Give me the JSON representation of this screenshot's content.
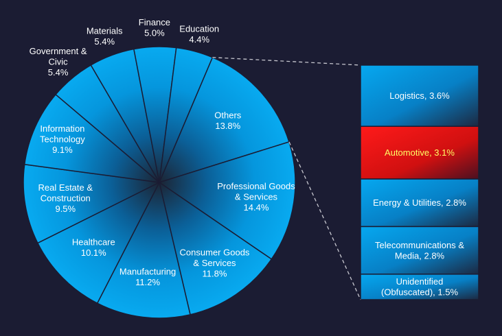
{
  "chart_data": {
    "type": "bar-of-pie",
    "pie": {
      "slices": [
        {
          "label": [
            "Others"
          ],
          "value": 13.8,
          "value_text": "13.8%"
        },
        {
          "label": [
            "Professional Goods",
            "& Services"
          ],
          "value": 14.4,
          "value_text": "14.4%"
        },
        {
          "label": [
            "Consumer Goods",
            "& Services"
          ],
          "value": 11.8,
          "value_text": "11.8%"
        },
        {
          "label": [
            "Manufacturing"
          ],
          "value": 11.2,
          "value_text": "11.2%"
        },
        {
          "label": [
            "Healthcare"
          ],
          "value": 10.1,
          "value_text": "10.1%"
        },
        {
          "label": [
            "Real Estate &",
            "Construction"
          ],
          "value": 9.5,
          "value_text": "9.5%"
        },
        {
          "label": [
            "Information",
            "Technology"
          ],
          "value": 9.1,
          "value_text": "9.1%"
        },
        {
          "label": [
            "Government &",
            "Civic"
          ],
          "value": 5.4,
          "value_text": "5.4%"
        },
        {
          "label": [
            "Materials"
          ],
          "value": 5.4,
          "value_text": "5.4%"
        },
        {
          "label": [
            "Finance"
          ],
          "value": 5.0,
          "value_text": "5.0%"
        },
        {
          "label": [
            "Education"
          ],
          "value": 4.4,
          "value_text": "4.4%"
        }
      ]
    },
    "breakdown_bar": {
      "parent": "Others",
      "segments": [
        {
          "label": [
            "Logistics, 3.6%"
          ],
          "value": 3.6,
          "highlight": false
        },
        {
          "label": [
            "Automotive, 3.1%"
          ],
          "value": 3.1,
          "highlight": true
        },
        {
          "label": [
            "Energy & Utilities, 2.8%"
          ],
          "value": 2.8,
          "highlight": false
        },
        {
          "label": [
            "Telecommunications &",
            "Media, 2.8%"
          ],
          "value": 2.8,
          "highlight": false
        },
        {
          "label": [
            "Unidentified",
            "(Obfuscated), 1.5%"
          ],
          "value": 1.5,
          "highlight": false
        }
      ]
    },
    "colors": {
      "background": "#1b1c33",
      "slice": "#06a6ee",
      "slice_dark": "#1c2433",
      "highlight": "#ee1111",
      "highlight_text": "#ffff66",
      "connector": "#c8c8d0"
    }
  }
}
